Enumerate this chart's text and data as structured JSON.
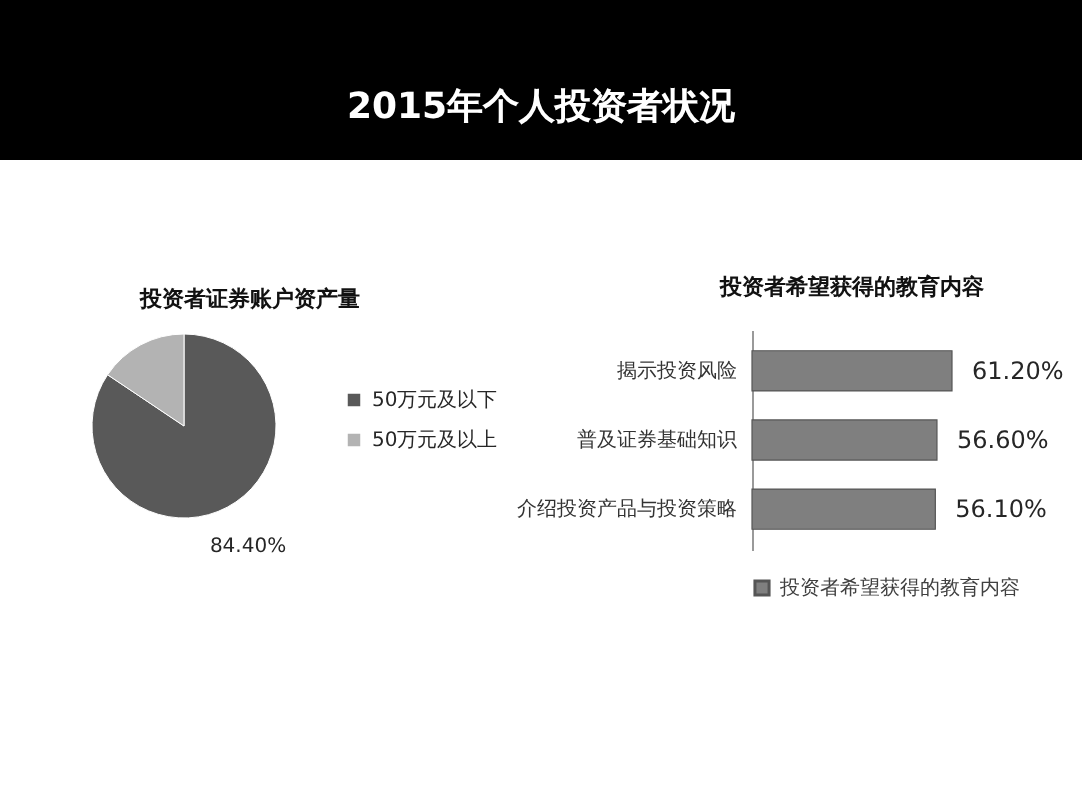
{
  "chart_data": [
    {
      "type": "other",
      "title": "2015年个人投资者状况"
    },
    {
      "type": "pie",
      "title": "投资者证券账户资产量",
      "categories": [
        "50万元及以下",
        "50万元及以上"
      ],
      "values": [
        84.4,
        15.6
      ],
      "colors": [
        "#595959",
        "#b3b3b3"
      ],
      "value_labels": [
        "84.40%",
        null
      ],
      "legend": "right"
    },
    {
      "type": "bar",
      "title": "投资者希望获得的教育内容",
      "orientation": "horizontal",
      "categories": [
        "揭示投资风险",
        "普及证券基础知识",
        "介绍投资产品与投资策略"
      ],
      "series": [
        {
          "name": "投资者希望获得的教育内容",
          "color": "#7f7f7f",
          "values": [
            61.2,
            56.6,
            56.1
          ],
          "value_labels": [
            "61.20%",
            "56.60%",
            "56.10%"
          ]
        }
      ],
      "tick_labels": "y",
      "legend": "bottom"
    }
  ]
}
